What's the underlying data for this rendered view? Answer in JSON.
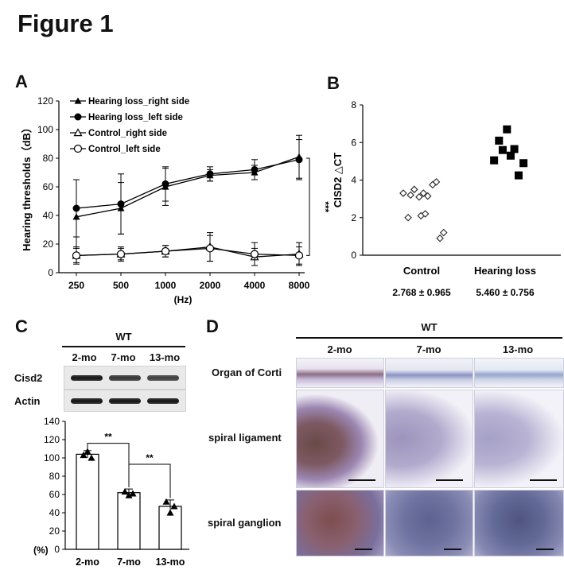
{
  "figure_title": "Figure 1",
  "panels": {
    "A": {
      "label": "A",
      "significance": "***",
      "chart_data": {
        "type": "line",
        "categories": [
          "250",
          "500",
          "1000",
          "2000",
          "4000",
          "8000"
        ],
        "xlabel": "(Hz)",
        "ylabel": "Hearing thresholds（dB）",
        "ylim": [
          0,
          120
        ],
        "yticks": [
          0,
          20,
          40,
          60,
          80,
          100,
          120
        ],
        "legend_position": "top-left",
        "series": [
          {
            "name": "Hearing loss_right side",
            "marker": "filled-triangle",
            "values": [
              39,
              45,
              60,
              68,
              70,
              81
            ],
            "err": [
              26,
              18,
              13,
              4,
              5,
              15
            ]
          },
          {
            "name": "Hearing loss_left side",
            "marker": "filled-circle",
            "values": [
              45,
              48,
              62,
              69,
              72,
              79
            ],
            "err": [
              20,
              21,
              12,
              5,
              7,
              14
            ]
          },
          {
            "name": "Control_right side",
            "marker": "open-triangle",
            "values": [
              12,
              13,
              15,
              18,
              11,
              13
            ],
            "err": [
              6,
              5,
              4,
              10,
              6,
              8
            ]
          },
          {
            "name": "Control_left side",
            "marker": "open-circle",
            "values": [
              12,
              13,
              15,
              17,
              13,
              12
            ],
            "err": [
              5,
              4,
              4,
              9,
              8,
              6
            ]
          }
        ]
      }
    },
    "B": {
      "label": "B",
      "chart_data": {
        "type": "scatter",
        "ylabel": "CISD2 △CT",
        "ylim": [
          0,
          8
        ],
        "yticks": [
          0,
          2,
          4,
          6,
          8
        ],
        "categories": [
          "Control",
          "Hearing loss"
        ],
        "stats": [
          "2.768 ± 0.965",
          "5.460 ± 0.756"
        ],
        "series": [
          {
            "name": "Control",
            "marker": "open-diamond",
            "points": [
              [
                -0.3,
                3.3
              ],
              [
                -0.22,
                2.0
              ],
              [
                -0.18,
                3.2
              ],
              [
                -0.12,
                3.5
              ],
              [
                -0.04,
                3.1
              ],
              [
                -0.01,
                2.1
              ],
              [
                0.03,
                3.3
              ],
              [
                0.06,
                2.2
              ],
              [
                0.1,
                3.15
              ],
              [
                0.18,
                3.75
              ],
              [
                0.24,
                3.9
              ],
              [
                0.3,
                0.9
              ],
              [
                0.36,
                1.2
              ]
            ]
          },
          {
            "name": "Hearing loss",
            "marker": "filled-square",
            "points": [
              [
                -0.18,
                5.05
              ],
              [
                -0.1,
                6.1
              ],
              [
                -0.04,
                5.6
              ],
              [
                0.03,
                6.7
              ],
              [
                0.09,
                5.3
              ],
              [
                0.15,
                5.65
              ],
              [
                0.22,
                4.25
              ],
              [
                0.3,
                4.9
              ]
            ]
          }
        ]
      }
    },
    "C": {
      "label": "C",
      "group": "WT",
      "lanes": [
        "2-mo",
        "7-mo",
        "13-mo"
      ],
      "blots": [
        {
          "name": "Cisd2",
          "intensity": [
            1.0,
            0.9,
            0.85
          ]
        },
        {
          "name": "Actin",
          "intensity": [
            1.0,
            1.0,
            1.0
          ]
        }
      ],
      "significance": [
        "**",
        "**"
      ],
      "chart_data": {
        "type": "bar",
        "categories": [
          "2-mo",
          "7-mo",
          "13-mo"
        ],
        "values": [
          104,
          62,
          47
        ],
        "err": [
          4,
          4,
          7
        ],
        "points": [
          [
            103,
            107,
            100
          ],
          [
            63,
            59,
            61
          ],
          [
            52,
            40,
            47
          ]
        ],
        "ylabel": "(%)",
        "ylim": [
          0,
          140
        ],
        "yticks": [
          0,
          20,
          40,
          60,
          80,
          100,
          120,
          140
        ]
      }
    },
    "D": {
      "label": "D",
      "group": "WT",
      "columns": [
        "2-mo",
        "7-mo",
        "13-mo"
      ],
      "rows": [
        "Organ of Corti",
        "spiral ligament",
        "spiral ganglion"
      ]
    }
  }
}
